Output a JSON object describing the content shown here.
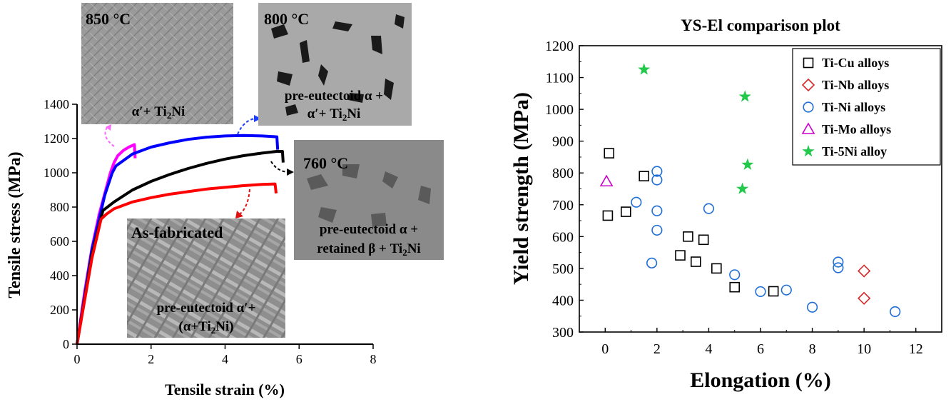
{
  "chart_data": [
    {
      "type": "line",
      "xlabel": "Tensile strain (%)",
      "ylabel": "Tensile stress (MPa)",
      "xlim": [
        0,
        8
      ],
      "ylim": [
        0,
        1400
      ],
      "xticks": [
        0,
        2,
        4,
        6,
        8
      ],
      "yticks": [
        0,
        200,
        400,
        600,
        800,
        1000,
        1200,
        1400
      ],
      "grid": false,
      "series": [
        {
          "color": "#ff00ff",
          "points": [
            [
              0,
              0
            ],
            [
              0.2,
              300
            ],
            [
              0.4,
              560
            ],
            [
              0.6,
              760
            ],
            [
              0.75,
              880
            ],
            [
              0.9,
              1000
            ],
            [
              1.0,
              1060
            ],
            [
              1.1,
              1100
            ],
            [
              1.25,
              1130
            ],
            [
              1.4,
              1150
            ],
            [
              1.55,
              1165
            ],
            [
              1.57,
              1085
            ]
          ]
        },
        {
          "color": "#0000ff",
          "points": [
            [
              0,
              0
            ],
            [
              0.4,
              550
            ],
            [
              0.75,
              870
            ],
            [
              0.95,
              1000
            ],
            [
              1.05,
              1040
            ],
            [
              1.5,
              1110
            ],
            [
              2,
              1150
            ],
            [
              2.5,
              1175
            ],
            [
              3,
              1195
            ],
            [
              3.5,
              1208
            ],
            [
              4,
              1215
            ],
            [
              4.5,
              1218
            ],
            [
              5,
              1215
            ],
            [
              5.4,
              1210
            ],
            [
              5.42,
              1135
            ]
          ]
        },
        {
          "color": "#000000",
          "points": [
            [
              0,
              0
            ],
            [
              0.4,
              520
            ],
            [
              0.7,
              780
            ],
            [
              1,
              830
            ],
            [
              1.5,
              900
            ],
            [
              2,
              950
            ],
            [
              2.5,
              990
            ],
            [
              3,
              1025
            ],
            [
              3.5,
              1055
            ],
            [
              4,
              1080
            ],
            [
              4.5,
              1100
            ],
            [
              5,
              1115
            ],
            [
              5.4,
              1125
            ],
            [
              5.55,
              1125
            ],
            [
              5.57,
              1060
            ]
          ]
        },
        {
          "color": "#ff0000",
          "points": [
            [
              0,
              0
            ],
            [
              0.4,
              500
            ],
            [
              0.65,
              730
            ],
            [
              0.8,
              760
            ],
            [
              1,
              790
            ],
            [
              1.5,
              830
            ],
            [
              2,
              855
            ],
            [
              2.5,
              875
            ],
            [
              3,
              890
            ],
            [
              3.5,
              905
            ],
            [
              4,
              915
            ],
            [
              4.5,
              925
            ],
            [
              5,
              932
            ],
            [
              5.35,
              935
            ],
            [
              5.38,
              880
            ]
          ]
        }
      ],
      "insets": [
        {
          "temp": "850 °C",
          "phase": "α′+ Ti",
          "phase_sub": "2",
          "phase_tail": "Ni"
        },
        {
          "temp": "800 °C",
          "phase_line1": "pre-eutectoid α +",
          "phase_line2": "α′+ Ti",
          "phase_line2_sub": "2",
          "phase_line2_tail": "Ni"
        },
        {
          "temp": "760 °C",
          "phase_line1": "pre-eutectoid α +",
          "phase_line2": "retained β + Ti",
          "phase_line2_sub": "2",
          "phase_line2_tail": "Ni"
        },
        {
          "temp": "As-fabricated",
          "phase_line1": "pre-eutectoid α′+",
          "phase_line2": "(α+Ti",
          "phase_line2_sub": "2",
          "phase_line2_tail": "Ni)"
        }
      ]
    },
    {
      "type": "scatter",
      "title": "YS-El comparison plot",
      "xlabel": "Elongation (%)",
      "ylabel": "Yield strength (MPa)",
      "xlim": [
        -1,
        13
      ],
      "ylim": [
        300,
        1200
      ],
      "xticks": [
        0,
        2,
        4,
        6,
        8,
        10,
        12
      ],
      "yticks": [
        300,
        400,
        500,
        600,
        700,
        800,
        900,
        1000,
        1100,
        1200
      ],
      "grid": false,
      "legend_position": "top-right",
      "series": [
        {
          "name": "Ti-Cu alloys",
          "marker": "square",
          "color": "#000000",
          "points": [
            [
              0.15,
              862
            ],
            [
              0.1,
              666
            ],
            [
              0.8,
              678
            ],
            [
              1.5,
              790
            ],
            [
              2.9,
              541
            ],
            [
              3.2,
              600
            ],
            [
              3.5,
              521
            ],
            [
              3.8,
              590
            ],
            [
              4.3,
              500
            ],
            [
              5,
              441
            ],
            [
              6.5,
              428
            ]
          ]
        },
        {
          "name": "Ti-Nb alloys",
          "marker": "diamond",
          "color": "#d62728",
          "points": [
            [
              10,
              492
            ],
            [
              10,
              406
            ]
          ]
        },
        {
          "name": "Ti-Ni alloys",
          "marker": "circle",
          "color": "#1f6fd6",
          "points": [
            [
              1.2,
              708
            ],
            [
              2,
              805
            ],
            [
              2,
              778
            ],
            [
              2,
              681
            ],
            [
              2,
              620
            ],
            [
              1.8,
              517
            ],
            [
              4,
              688
            ],
            [
              5,
              480
            ],
            [
              6,
              427
            ],
            [
              7,
              432
            ],
            [
              8,
              378
            ],
            [
              9,
              520
            ],
            [
              9,
              502
            ],
            [
              11.2,
              364
            ]
          ]
        },
        {
          "name": "Ti-Mo alloys",
          "marker": "triangle",
          "color": "#cc00cc",
          "points": [
            [
              0.05,
              773
            ]
          ]
        },
        {
          "name": "Ti-5Ni alloy",
          "marker": "star",
          "color": "#22c94a",
          "points": [
            [
              1.5,
              1125
            ],
            [
              5.4,
              1040
            ],
            [
              5.5,
              826
            ],
            [
              5.3,
              750
            ]
          ]
        }
      ]
    }
  ]
}
